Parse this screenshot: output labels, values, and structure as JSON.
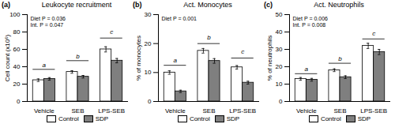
{
  "chart_data": [
    {
      "type": "bar",
      "panel_label": "(a)",
      "title": "Leukocyte recruitment",
      "ylabel": "Cell count (x10⁶)",
      "categories": [
        "Vehicle",
        "SEB",
        "LPS-SEB"
      ],
      "series": [
        {
          "name": "Control",
          "color": "#FFFFFF",
          "values": [
            24.5,
            34.0,
            60.0
          ],
          "errors": [
            1.5,
            1.5,
            3.0
          ]
        },
        {
          "name": "SDP",
          "color": "#7f7f7f",
          "values": [
            26.0,
            28.5,
            47.0
          ],
          "errors": [
            1.5,
            1.5,
            2.5
          ]
        }
      ],
      "ylim": [
        0,
        100
      ],
      "yticks": [
        0,
        20,
        40,
        60,
        80,
        100
      ],
      "annotations": [
        "Diet P = 0.036",
        "Int. P = 0.047"
      ],
      "letters": [
        "a",
        "b",
        "c"
      ],
      "letter_y": [
        40,
        50,
        78
      ],
      "bracket_y": [
        37,
        47,
        73
      ],
      "legend": "bottom"
    },
    {
      "type": "bar",
      "panel_label": "(b)",
      "title": "Act. Monocytes",
      "ylabel": "% of monocytes",
      "categories": [
        "Vehicle",
        "SEB",
        "LPS-SEB"
      ],
      "series": [
        {
          "name": "Control",
          "color": "#FFFFFF",
          "values": [
            10.0,
            17.5,
            11.8
          ],
          "errors": [
            0.6,
            0.8,
            0.6
          ]
        },
        {
          "name": "SDP",
          "color": "#7f7f7f",
          "values": [
            3.5,
            14.0,
            6.5
          ],
          "errors": [
            0.4,
            0.8,
            0.5
          ]
        }
      ],
      "ylim": [
        0,
        30
      ],
      "yticks": [
        0,
        10,
        20,
        30
      ],
      "annotations": [
        "Diet P = 0.001"
      ],
      "letters": [
        "a",
        "b",
        "c"
      ],
      "letter_y": [
        13.5,
        21.5,
        16.5
      ],
      "bracket_y": [
        12.5,
        20.0,
        15.0
      ],
      "legend": "bottom"
    },
    {
      "type": "bar",
      "panel_label": "(c)",
      "title": "Act. Neutrophils",
      "ylabel": "% of neutrophils",
      "categories": [
        "Vehicle",
        "SEB",
        "LPS-SEB"
      ],
      "series": [
        {
          "name": "Control",
          "color": "#FFFFFF",
          "values": [
            13.0,
            18.0,
            32.0
          ],
          "errors": [
            0.8,
            0.8,
            1.5
          ]
        },
        {
          "name": "SDP",
          "color": "#7f7f7f",
          "values": [
            12.5,
            14.0,
            28.5
          ],
          "errors": [
            0.8,
            0.8,
            1.5
          ]
        }
      ],
      "ylim": [
        0,
        50
      ],
      "yticks": [
        0,
        10,
        20,
        30,
        40,
        50
      ],
      "annotations": [
        "Diet P = 0.006",
        "Int. P = 0.008"
      ],
      "letters": [
        "a",
        "b",
        "c"
      ],
      "letter_y": [
        17.5,
        23.5,
        38.0
      ],
      "bracket_y": [
        16.0,
        22.0,
        36.0
      ],
      "legend": "bottom"
    }
  ]
}
